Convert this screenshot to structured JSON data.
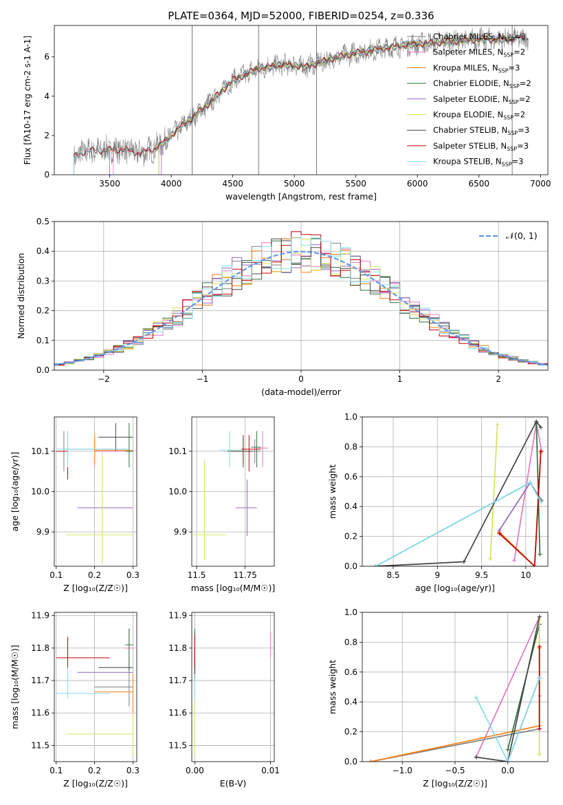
{
  "title": "PLATE=0364, MJD=52000, FIBERID=0254, z=0.336",
  "colors": {
    "Chabrier MILES": "#7f7f7f",
    "Salpeter MILES": "#e377c2",
    "Kroupa MILES": "#ff7f0e",
    "Chabrier ELODIE": "#2f6f3f",
    "Salpeter ELODIE": "#9467bd",
    "Kroupa ELODIE": "#d4e157",
    "Chabrier STELIB": "#444444",
    "Salpeter STELIB": "#c00000",
    "Kroupa STELIB": "#80deea",
    "normal": "#6495ed"
  },
  "chart_data": [
    {
      "id": "spectrum",
      "type": "line",
      "xlabel": "wavelength [Angstrom, rest frame]",
      "ylabel": "Flux [f$_\\lambda$10$^{-17}$ erg cm$^{-2}$ s$^{-1}$ A$^{-1}$]",
      "xlim": [
        3050,
        7060
      ],
      "ylim": [
        0,
        7.6
      ],
      "xticks": [
        3500,
        4000,
        4500,
        5000,
        5500,
        6000,
        6500,
        7000
      ],
      "yticks": [
        0,
        2,
        4,
        6
      ],
      "legend_loc": "upper right",
      "legend": [
        {
          "label": "Chabrier MILES, N",
          "sub": "SSP",
          "suffix": "=3",
          "key": "Chabrier MILES"
        },
        {
          "label": "Salpeter MILES, N",
          "sub": "SSP",
          "suffix": "=2",
          "key": "Salpeter MILES"
        },
        {
          "label": "Kroupa MILES, N",
          "sub": "SSP",
          "suffix": "=3",
          "key": "Kroupa MILES"
        },
        {
          "label": "Chabrier ELODIE, N",
          "sub": "SSP",
          "suffix": "=2",
          "key": "Chabrier ELODIE"
        },
        {
          "label": "Salpeter ELODIE, N",
          "sub": "SSP",
          "suffix": "=2",
          "key": "Salpeter ELODIE"
        },
        {
          "label": "Kroupa ELODIE, N",
          "sub": "SSP",
          "suffix": "=2",
          "key": "Kroupa ELODIE"
        },
        {
          "label": "Chabrier STELIB, N",
          "sub": "SSP",
          "suffix": "=3",
          "key": "Chabrier STELIB"
        },
        {
          "label": "Salpeter STELIB, N",
          "sub": "SSP",
          "suffix": "=3",
          "key": "Salpeter STELIB"
        },
        {
          "label": "Kroupa STELIB, N",
          "sub": "SSP",
          "suffix": "=3",
          "key": "Kroupa STELIB"
        }
      ],
      "continuum_x": [
        3210,
        3300,
        3450,
        3600,
        3750,
        3850,
        3950,
        4050,
        4150,
        4300,
        4500,
        4700,
        4900,
        5100,
        5300,
        5500,
        5700,
        5900,
        6100,
        6300,
        6500,
        6700,
        6900
      ],
      "continuum_y": [
        0.9,
        1.2,
        1.25,
        1.3,
        1.1,
        1.3,
        1.7,
        2.3,
        2.8,
        3.6,
        4.8,
        5.4,
        5.6,
        5.5,
        5.9,
        6.2,
        6.4,
        6.6,
        6.7,
        6.8,
        6.9,
        6.9,
        6.95
      ],
      "spikes_x": [
        4170,
        4710,
        5180,
        6770
      ]
    },
    {
      "id": "residuals",
      "type": "histogram",
      "xlabel": "(data-model)/error",
      "ylabel": "Normed distribution",
      "xlim": [
        -2.5,
        2.5
      ],
      "ylim": [
        0,
        0.5
      ],
      "xticks": [
        -2,
        -1,
        0,
        1,
        2
      ],
      "xtick_labels": [
        "−2",
        "−1",
        "0",
        "1",
        "2"
      ],
      "yticks": [
        0.0,
        0.1,
        0.2,
        0.3,
        0.4,
        0.5
      ],
      "grid": true,
      "legend_loc": "upper right",
      "curve_label": "𝒩(0, 1)",
      "bin_width": 0.1
    },
    {
      "id": "age_vs_Z",
      "type": "errorbar",
      "xlabel": "Z [log₁₀(Z/Z☉)]",
      "ylabel": "age  [log₁₀(age/yr)]",
      "xlim": [
        0.095,
        0.31
      ],
      "ylim": [
        9.815,
        10.185
      ],
      "xticks": [
        0.1,
        0.2,
        0.3
      ],
      "yticks": [
        9.9,
        10.0,
        10.1
      ],
      "grid": true,
      "points": [
        {
          "key": "Chabrier MILES",
          "x": 0.12,
          "y": 10.105,
          "xerr": [
            0.12,
            0.29
          ],
          "yerr": [
            10.05,
            10.15
          ]
        },
        {
          "key": "Salpeter MILES",
          "x": 0.2,
          "y": 10.1,
          "xerr": [
            0.2,
            0.3
          ],
          "yerr": [
            10.06,
            10.14
          ]
        },
        {
          "key": "Kroupa MILES",
          "x": 0.2,
          "y": 10.102,
          "xerr": [
            0.2,
            0.3
          ],
          "yerr": [
            10.07,
            10.14
          ]
        },
        {
          "key": "Chabrier ELODIE",
          "x": 0.29,
          "y": 10.1,
          "xerr": [
            0.28,
            0.3
          ],
          "yerr": [
            10.06,
            10.17
          ]
        },
        {
          "key": "Salpeter ELODIE",
          "x": 0.22,
          "y": 9.96,
          "xerr": [
            0.155,
            0.3
          ],
          "yerr": [
            9.96,
            9.96
          ]
        },
        {
          "key": "Kroupa ELODIE",
          "x": 0.22,
          "y": 9.893,
          "xerr": [
            0.125,
            0.3
          ],
          "yerr": [
            9.82,
            10.1
          ]
        },
        {
          "key": "Chabrier STELIB",
          "x": 0.255,
          "y": 10.135,
          "xerr": [
            0.21,
            0.3
          ],
          "yerr": [
            10.1,
            10.17
          ]
        },
        {
          "key": "Salpeter STELIB",
          "x": 0.13,
          "y": 10.1,
          "xerr": [
            0.1,
            0.13
          ],
          "yerr": [
            10.03,
            10.15
          ]
        },
        {
          "key": "Kroupa STELIB",
          "x": 0.13,
          "y": 10.105,
          "xerr": [
            0.1,
            0.29
          ],
          "yerr": [
            10.06,
            10.15
          ]
        }
      ]
    },
    {
      "id": "age_vs_mass",
      "type": "errorbar",
      "xlabel": "mass [log₁₀(M/M☉)]",
      "ylabel": "",
      "xlim": [
        11.475,
        11.9
      ],
      "ylim": [
        9.815,
        10.185
      ],
      "xticks": [
        11.5,
        11.75
      ],
      "yticks": [
        9.9,
        10.0,
        10.1
      ],
      "grid": true,
      "points": [
        {
          "key": "Chabrier MILES",
          "x": 11.8,
          "y": 10.1,
          "xerr": [
            11.68,
            11.83
          ],
          "yerr": [
            10.07,
            10.13
          ]
        },
        {
          "key": "Salpeter MILES",
          "x": 11.84,
          "y": 10.108,
          "xerr": [
            11.82,
            11.87
          ],
          "yerr": [
            10.06,
            10.15
          ]
        },
        {
          "key": "Kroupa MILES",
          "x": 11.74,
          "y": 10.1,
          "xerr": [
            11.66,
            11.74
          ],
          "yerr": [
            10.07,
            10.14
          ]
        },
        {
          "key": "Chabrier ELODIE",
          "x": 11.81,
          "y": 10.11,
          "xerr": [
            11.78,
            11.83
          ],
          "yerr": [
            10.06,
            10.15
          ]
        },
        {
          "key": "Salpeter ELODIE",
          "x": 11.76,
          "y": 9.96,
          "xerr": [
            11.7,
            11.81
          ],
          "yerr": [
            9.89,
            10.03
          ]
        },
        {
          "key": "Kroupa ELODIE",
          "x": 11.54,
          "y": 9.893,
          "xerr": [
            11.48,
            11.65
          ],
          "yerr": [
            9.83,
            10.08
          ]
        },
        {
          "key": "Chabrier STELIB",
          "x": 11.74,
          "y": 10.1,
          "xerr": [
            11.66,
            11.79
          ],
          "yerr": [
            10.06,
            10.14
          ]
        },
        {
          "key": "Salpeter STELIB",
          "x": 11.77,
          "y": 10.105,
          "xerr": [
            11.73,
            11.83
          ],
          "yerr": [
            10.05,
            10.14
          ]
        },
        {
          "key": "Kroupa STELIB",
          "x": 11.67,
          "y": 10.103,
          "xerr": [
            11.62,
            11.73
          ],
          "yerr": [
            10.06,
            10.15
          ]
        }
      ]
    },
    {
      "id": "weight_vs_age",
      "type": "line",
      "xlabel": "age  [log₁₀(age/yr)]",
      "ylabel": "mass weight",
      "xlim": [
        8.15,
        10.25
      ],
      "ylim": [
        0,
        1.0
      ],
      "xticks": [
        8.5,
        9.0,
        9.5,
        10.0
      ],
      "yticks": [
        0.0,
        0.2,
        0.4,
        0.6,
        0.8,
        1.0
      ],
      "grid": true,
      "series": [
        {
          "key": "Chabrier MILES",
          "x": [
            8.3,
            10.05,
            10.18
          ],
          "y": [
            0.0,
            0.56,
            0.44
          ]
        },
        {
          "key": "Salpeter MILES",
          "x": [
            9.87,
            10.12,
            10.18
          ],
          "y": [
            0.04,
            0.96,
            0.77
          ]
        },
        {
          "key": "Kroupa MILES",
          "x": [
            9.7,
            10.1,
            10.17
          ],
          "y": [
            0.23,
            0.0,
            0.76
          ]
        },
        {
          "key": "Chabrier ELODIE",
          "x": [
            10.12,
            10.16
          ],
          "y": [
            0.96,
            0.08
          ]
        },
        {
          "key": "Salpeter ELODIE",
          "x": [
            9.7,
            10.05
          ],
          "y": [
            0.24,
            0.56
          ]
        },
        {
          "key": "Kroupa ELODIE",
          "x": [
            9.6,
            9.68
          ],
          "y": [
            0.05,
            0.95
          ]
        },
        {
          "key": "Chabrier STELIB",
          "x": [
            8.3,
            9.3,
            10.12,
            10.17
          ],
          "y": [
            0.0,
            0.03,
            0.97,
            0.93
          ]
        },
        {
          "key": "Salpeter STELIB",
          "x": [
            9.7,
            10.1,
            10.17
          ],
          "y": [
            0.22,
            0.0,
            0.77
          ]
        },
        {
          "key": "Kroupa STELIB",
          "x": [
            8.3,
            10.05,
            10.17
          ],
          "y": [
            0.0,
            0.56,
            0.43
          ]
        }
      ]
    },
    {
      "id": "mass_vs_Z",
      "type": "errorbar",
      "xlabel": "Z [log₁₀(Z/Z☉)]",
      "ylabel": "mass [log₁₀(M/M☉)]",
      "xlim": [
        0.095,
        0.31
      ],
      "ylim": [
        11.45,
        11.91
      ],
      "xticks": [
        0.1,
        0.2,
        0.3
      ],
      "yticks": [
        11.5,
        11.6,
        11.7,
        11.8,
        11.9
      ],
      "grid": true,
      "points": [
        {
          "key": "Chabrier MILES",
          "x": 0.29,
          "y": 11.68,
          "xerr": [
            0.2,
            0.3
          ],
          "yerr": [
            11.62,
            11.74
          ]
        },
        {
          "key": "Salpeter MILES",
          "x": 0.29,
          "y": 11.8,
          "xerr": [
            0.28,
            0.3
          ],
          "yerr": [
            11.73,
            11.86
          ]
        },
        {
          "key": "Kroupa MILES",
          "x": 0.3,
          "y": 11.665,
          "xerr": [
            0.2,
            0.3
          ],
          "yerr": [
            11.6,
            11.72
          ]
        },
        {
          "key": "Chabrier ELODIE",
          "x": 0.29,
          "y": 11.81,
          "xerr": [
            0.28,
            0.3
          ],
          "yerr": [
            11.73,
            11.86
          ]
        },
        {
          "key": "Salpeter ELODIE",
          "x": 0.22,
          "y": 11.725,
          "xerr": [
            0.155,
            0.3
          ],
          "yerr": [
            11.725,
            11.725
          ]
        },
        {
          "key": "Kroupa ELODIE",
          "x": 0.3,
          "y": 11.535,
          "xerr": [
            0.125,
            0.3
          ],
          "yerr": [
            11.47,
            11.6
          ]
        },
        {
          "key": "Chabrier STELIB",
          "x": 0.26,
          "y": 11.74,
          "xerr": [
            0.21,
            0.3
          ],
          "yerr": [
            11.74,
            11.74
          ]
        },
        {
          "key": "Salpeter STELIB",
          "x": 0.13,
          "y": 11.77,
          "xerr": [
            0.1,
            0.24
          ],
          "yerr": [
            11.74,
            11.835
          ]
        },
        {
          "key": "Kroupa STELIB",
          "x": 0.13,
          "y": 11.66,
          "xerr": [
            0.1,
            0.24
          ],
          "yerr": [
            11.645,
            11.74
          ]
        }
      ]
    },
    {
      "id": "mass_vs_EBV",
      "type": "errorbar",
      "xlabel": "E(B-V)",
      "ylabel": "",
      "xlim": [
        -0.0004,
        0.0105
      ],
      "ylim": [
        11.45,
        11.91
      ],
      "xticks": [
        0.0,
        0.01
      ],
      "xtick_labels": [
        "0.00",
        "0.01"
      ],
      "yticks": [
        11.5,
        11.6,
        11.7,
        11.8,
        11.9
      ],
      "grid": true,
      "points": [
        {
          "key": "Chabrier MILES",
          "x": 0.0,
          "y": 11.75,
          "xerr": [
            0.0,
            0.0
          ],
          "yerr": [
            11.7,
            11.85
          ]
        },
        {
          "key": "Salpeter MILES",
          "x": 0.01,
          "y": 11.8,
          "xerr": [
            0.01,
            0.01
          ],
          "yerr": [
            11.77,
            11.85
          ]
        },
        {
          "key": "Kroupa MILES",
          "x": 0.0,
          "y": 11.7,
          "xerr": [
            0.0,
            0.0
          ],
          "yerr": [
            11.66,
            11.76
          ]
        },
        {
          "key": "Chabrier ELODIE",
          "x": 0.0,
          "y": 11.8,
          "xerr": [
            0.0,
            0.0
          ],
          "yerr": [
            11.72,
            11.86
          ]
        },
        {
          "key": "Salpeter ELODIE",
          "x": 0.0,
          "y": 11.725,
          "xerr": [
            0.0,
            0.0
          ],
          "yerr": [
            11.7,
            11.76
          ]
        },
        {
          "key": "Kroupa ELODIE",
          "x": 0.0,
          "y": 11.55,
          "xerr": [
            0.0,
            0.0
          ],
          "yerr": [
            11.46,
            11.7
          ]
        },
        {
          "key": "Chabrier STELIB",
          "x": 0.0,
          "y": 11.74,
          "xerr": [
            0.0,
            0.0
          ],
          "yerr": [
            11.7,
            11.8
          ]
        },
        {
          "key": "Salpeter STELIB",
          "x": 0.0,
          "y": 11.78,
          "xerr": [
            0.0,
            0.0
          ],
          "yerr": [
            11.74,
            11.84
          ]
        },
        {
          "key": "Kroupa STELIB",
          "x": 0.0,
          "y": 11.66,
          "xerr": [
            0.0,
            0.0
          ],
          "yerr": [
            11.64,
            11.72
          ]
        }
      ]
    },
    {
      "id": "weight_vs_Z",
      "type": "line",
      "xlabel": "Z [log₁₀(Z/Z☉)]",
      "ylabel": "mass weight",
      "xlim": [
        -1.38,
        0.38
      ],
      "ylim": [
        0,
        1.0
      ],
      "xticks": [
        -1.0,
        -0.5,
        0.0
      ],
      "xtick_labels": [
        "−1.0",
        "−0.5",
        "0.0"
      ],
      "yticks": [
        0.0,
        0.2,
        0.4,
        0.6,
        0.8,
        1.0
      ],
      "grid": true,
      "series": [
        {
          "key": "Chabrier MILES",
          "x": [
            -1.3,
            0.3,
            0.3
          ],
          "y": [
            0.0,
            0.22,
            0.56
          ]
        },
        {
          "key": "Salpeter MILES",
          "x": [
            -0.3,
            0.3,
            0.3
          ],
          "y": [
            0.03,
            0.97,
            0.44
          ]
        },
        {
          "key": "Kroupa MILES",
          "x": [
            -1.3,
            0.3,
            0.3
          ],
          "y": [
            0.0,
            0.24,
            0.76
          ]
        },
        {
          "key": "Chabrier ELODIE",
          "x": [
            0.0,
            0.3
          ],
          "y": [
            0.08,
            0.92
          ]
        },
        {
          "key": "Salpeter ELODIE",
          "x": [
            0.0,
            0.3
          ],
          "y": [
            0.0,
            0.56
          ]
        },
        {
          "key": "Kroupa ELODIE",
          "x": [
            0.3,
            0.3
          ],
          "y": [
            0.05,
            0.95
          ]
        },
        {
          "key": "Chabrier STELIB",
          "x": [
            -0.3,
            0.0,
            0.3
          ],
          "y": [
            0.03,
            0.0,
            0.97
          ]
        },
        {
          "key": "Salpeter STELIB",
          "x": [
            0.3,
            0.3
          ],
          "y": [
            0.22,
            0.77
          ]
        },
        {
          "key": "Kroupa STELIB",
          "x": [
            -0.3,
            0.0,
            0.3
          ],
          "y": [
            0.43,
            0.0,
            0.56
          ]
        }
      ]
    }
  ]
}
